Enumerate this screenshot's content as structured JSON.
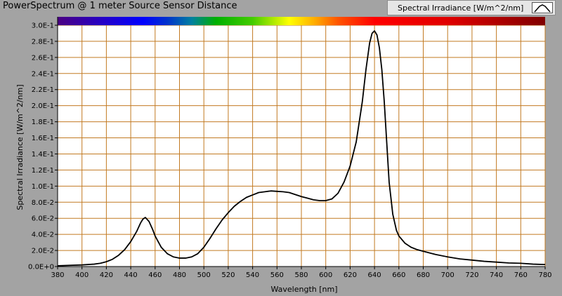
{
  "window": {
    "title": "PowerSpectrum @ 1 meter Source Sensor Distance"
  },
  "legend": {
    "label": "Spectral Irradiance [W/m^2/nm]",
    "line_color": "#000000"
  },
  "colors": {
    "grid": "#c27a22",
    "plot_background": "#ffffff",
    "curve": "#000000"
  },
  "chart_data": {
    "type": "line",
    "title": "PowerSpectrum @ 1 meter Source Sensor Distance",
    "xlabel": "Wavelength [nm]",
    "ylabel": "Spectral Irradiance [W/m^2/nm]",
    "xlim": [
      380,
      780
    ],
    "ylim": [
      0,
      0.3
    ],
    "grid": true,
    "legend_position": "top-right",
    "x_ticks": [
      380,
      400,
      420,
      440,
      460,
      480,
      500,
      520,
      540,
      560,
      580,
      600,
      620,
      640,
      660,
      680,
      700,
      720,
      740,
      760,
      780
    ],
    "y_ticks": [
      0,
      0.02,
      0.04,
      0.06,
      0.08,
      0.1,
      0.12,
      0.14,
      0.16,
      0.18,
      0.2,
      0.22,
      0.24,
      0.26,
      0.28,
      0.3
    ],
    "y_tick_labels": [
      "0.0E+0",
      "2.0E-2",
      "4.0E-2",
      "6.0E-2",
      "8.0E-2",
      "1.0E-1",
      "1.2E-1",
      "1.4E-1",
      "1.6E-1",
      "1.8E-1",
      "2.0E-1",
      "2.2E-1",
      "2.4E-1",
      "2.6E-1",
      "2.8E-1",
      "3.0E-1"
    ],
    "spectrum_bar": {
      "x_start": 380,
      "x_end": 780,
      "stops": [
        {
          "x": 380,
          "color": "#4b0082"
        },
        {
          "x": 420,
          "color": "#2200cc"
        },
        {
          "x": 450,
          "color": "#0000ff"
        },
        {
          "x": 470,
          "color": "#0033cc"
        },
        {
          "x": 490,
          "color": "#0080a0"
        },
        {
          "x": 510,
          "color": "#00b000"
        },
        {
          "x": 540,
          "color": "#44cc00"
        },
        {
          "x": 570,
          "color": "#ffff00"
        },
        {
          "x": 590,
          "color": "#ffb000"
        },
        {
          "x": 610,
          "color": "#ff5500"
        },
        {
          "x": 640,
          "color": "#ff0000"
        },
        {
          "x": 700,
          "color": "#e00000"
        },
        {
          "x": 780,
          "color": "#800000"
        }
      ]
    },
    "series": [
      {
        "name": "Spectral Irradiance [W/m^2/nm]",
        "x": [
          380,
          390,
          400,
          410,
          415,
          420,
          425,
          430,
          435,
          440,
          445,
          448,
          450,
          452,
          455,
          458,
          460,
          465,
          470,
          475,
          480,
          485,
          490,
          495,
          500,
          505,
          510,
          515,
          520,
          525,
          530,
          535,
          540,
          545,
          550,
          555,
          560,
          565,
          570,
          575,
          580,
          585,
          590,
          595,
          600,
          605,
          610,
          615,
          620,
          625,
          630,
          633,
          636,
          638,
          640,
          642,
          644,
          646,
          648,
          650,
          652,
          655,
          658,
          660,
          665,
          670,
          675,
          680,
          690,
          700,
          710,
          720,
          730,
          740,
          750,
          760,
          770,
          780
        ],
        "values": [
          0.001,
          0.0015,
          0.002,
          0.003,
          0.004,
          0.006,
          0.009,
          0.014,
          0.021,
          0.031,
          0.044,
          0.054,
          0.059,
          0.061,
          0.056,
          0.046,
          0.038,
          0.024,
          0.016,
          0.012,
          0.0105,
          0.0105,
          0.012,
          0.016,
          0.024,
          0.035,
          0.047,
          0.058,
          0.067,
          0.075,
          0.081,
          0.086,
          0.089,
          0.092,
          0.093,
          0.094,
          0.0935,
          0.093,
          0.092,
          0.0895,
          0.087,
          0.085,
          0.083,
          0.082,
          0.082,
          0.084,
          0.091,
          0.105,
          0.125,
          0.155,
          0.205,
          0.245,
          0.278,
          0.29,
          0.293,
          0.288,
          0.272,
          0.245,
          0.205,
          0.155,
          0.105,
          0.065,
          0.045,
          0.038,
          0.029,
          0.024,
          0.021,
          0.019,
          0.015,
          0.012,
          0.0095,
          0.008,
          0.0065,
          0.0055,
          0.0045,
          0.004,
          0.003,
          0.0025
        ]
      }
    ]
  }
}
